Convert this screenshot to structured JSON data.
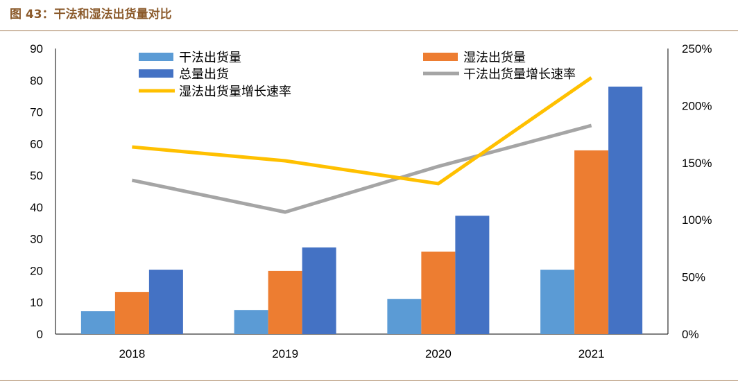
{
  "title": "图 43：干法和湿法出货量对比",
  "colors": {
    "dry": "#5b9bd5",
    "wet": "#ed7d31",
    "total": "#4472c4",
    "dry_rate": "#a5a5a5",
    "wet_rate": "#ffc000",
    "title": "#8b5a2b"
  },
  "chart_data": {
    "type": "bar+line",
    "categories": [
      "2018",
      "2019",
      "2020",
      "2021"
    ],
    "series": [
      {
        "name": "干法出货量",
        "type": "bar",
        "axis": "left",
        "values": [
          7.2,
          7.6,
          11.1,
          20.3
        ]
      },
      {
        "name": "湿法出货量",
        "type": "bar",
        "axis": "left",
        "values": [
          13.3,
          19.9,
          26.0,
          57.9
        ]
      },
      {
        "name": "总量出货",
        "type": "bar",
        "axis": "left",
        "values": [
          20.3,
          27.3,
          37.3,
          78.0
        ]
      },
      {
        "name": "干法出货量增长速率",
        "type": "line",
        "axis": "right",
        "values": [
          134.7,
          106.8,
          146.8,
          182.6
        ]
      },
      {
        "name": "湿法出货量增长速率",
        "type": "line",
        "axis": "right",
        "values": [
          163.8,
          151.7,
          131.7,
          224.5
        ]
      }
    ],
    "ylim": [
      0,
      90
    ],
    "yticks": [
      0,
      10,
      20,
      30,
      40,
      50,
      60,
      70,
      80,
      90
    ],
    "y2lim": [
      0,
      250
    ],
    "y2ticks": [
      "0%",
      "50%",
      "100%",
      "150%",
      "200%",
      "250%"
    ],
    "legend": "top",
    "grid": false
  }
}
